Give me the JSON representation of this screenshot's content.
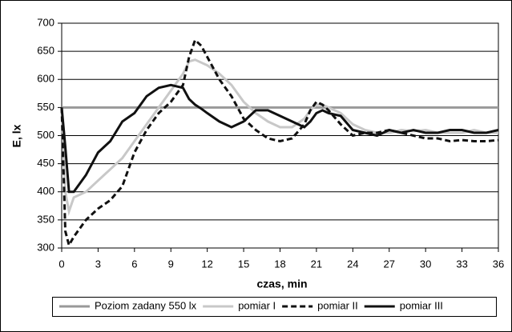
{
  "chart_data": {
    "type": "line",
    "xlabel": "czas, min",
    "ylabel": "E, lx",
    "x": [
      0,
      0.3,
      0.6,
      1,
      1.5,
      2,
      3,
      4,
      5,
      6,
      7,
      8,
      9,
      10,
      10.5,
      11,
      11.5,
      12,
      13,
      14,
      15,
      16,
      17,
      18,
      19,
      20,
      20.5,
      21,
      21.5,
      22,
      23,
      24,
      25,
      26,
      27,
      28,
      29,
      30,
      31,
      32,
      33,
      34,
      35,
      36
    ],
    "xlim": [
      0,
      36
    ],
    "xticks": [
      0,
      3,
      6,
      9,
      12,
      15,
      18,
      21,
      24,
      27,
      30,
      33,
      36
    ],
    "ylim": [
      300,
      700
    ],
    "yticks": [
      300,
      350,
      400,
      450,
      500,
      550,
      600,
      650,
      700
    ],
    "grid": true,
    "legend": "bottom",
    "series": [
      {
        "name": "Poziom zadany 550 lx",
        "color": "#999999",
        "dash": "solid",
        "values": [
          550,
          550,
          550,
          550,
          550,
          550,
          550,
          550,
          550,
          550,
          550,
          550,
          550,
          550,
          550,
          550,
          550,
          550,
          550,
          550,
          550,
          550,
          550,
          550,
          550,
          550,
          550,
          550,
          550,
          550,
          550,
          550,
          550,
          550,
          550,
          550,
          550,
          550,
          550,
          550,
          550,
          550,
          550,
          550
        ]
      },
      {
        "name": "pomiar I",
        "color": "#c8c8c8",
        "dash": "solid",
        "values": [
          550,
          400,
          365,
          390,
          395,
          400,
          420,
          440,
          460,
          490,
          520,
          550,
          580,
          610,
          632,
          635,
          630,
          625,
          610,
          590,
          560,
          540,
          525,
          515,
          515,
          530,
          545,
          555,
          555,
          550,
          540,
          520,
          510,
          505,
          505,
          510,
          508,
          510,
          505,
          505,
          505,
          510,
          505,
          505
        ]
      },
      {
        "name": "pomiar II",
        "color": "#111111",
        "dash": "dashed",
        "values": [
          550,
          330,
          305,
          320,
          335,
          350,
          370,
          385,
          410,
          470,
          510,
          540,
          560,
          590,
          640,
          670,
          660,
          640,
          600,
          570,
          530,
          510,
          495,
          490,
          495,
          520,
          545,
          560,
          555,
          545,
          520,
          500,
          505,
          505,
          510,
          505,
          500,
          495,
          495,
          490,
          492,
          490,
          490,
          492
        ]
      },
      {
        "name": "pomiar III",
        "color": "#111111",
        "dash": "solid",
        "values": [
          550,
          480,
          400,
          400,
          415,
          430,
          470,
          490,
          525,
          540,
          570,
          585,
          590,
          585,
          565,
          555,
          548,
          540,
          525,
          515,
          525,
          545,
          545,
          535,
          525,
          515,
          525,
          540,
          545,
          540,
          535,
          510,
          505,
          500,
          510,
          505,
          510,
          505,
          505,
          510,
          510,
          505,
          505,
          510
        ]
      }
    ]
  }
}
